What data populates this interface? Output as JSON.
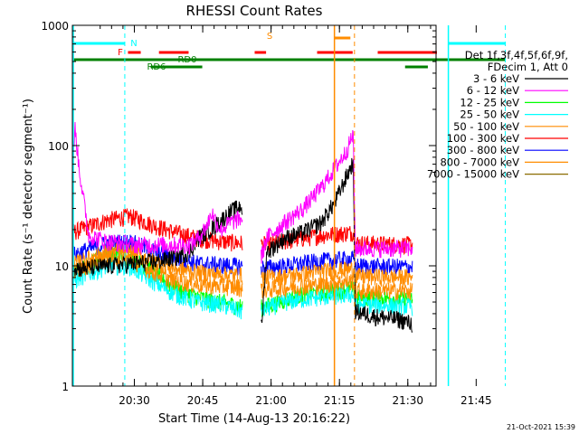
{
  "chart_data": {
    "type": "line",
    "title": "RHESSI Count Rates",
    "xlabel": "Start Time (14-Aug-13 20:16:22)",
    "ylabel": "Count Rate (s⁻¹ detector segment⁻¹)",
    "yscale": "log",
    "ylim": [
      1,
      1000
    ],
    "xlim_minutes": [
      20.4,
      100.2
    ],
    "x_unit": "minutes after 20:16:22",
    "xtick_labels": [
      "20:30",
      "20:45",
      "21:00",
      "21:15",
      "21:30",
      "21:45"
    ],
    "xtick_values": [
      13.6,
      28.6,
      43.6,
      58.6,
      73.6,
      88.6
    ],
    "ytick_labels": [
      "1",
      "10",
      "100",
      "1000"
    ],
    "ytick_values": [
      1,
      10,
      100,
      1000
    ],
    "grid": false,
    "legend_position": "right",
    "legend_header": [
      "Det 1f,3f,4f,5f,6f,9f,",
      "FDecim 1, Att 0"
    ],
    "footer": "21-Oct-2021 15:39",
    "gap_minutes": [
      57.5,
      61.9
    ],
    "series": [
      {
        "name": "3 - 6 keV",
        "color": "#000000",
        "points": [
          [
            0,
            4.2
          ],
          [
            6,
            3.2
          ],
          [
            11.5,
            2.8
          ],
          [
            12.4,
            24
          ],
          [
            17,
            11.5
          ],
          [
            22,
            9.5
          ],
          [
            28,
            10
          ],
          [
            34,
            10.5
          ],
          [
            40,
            11
          ],
          [
            46,
            13
          ],
          [
            48,
            17
          ],
          [
            52,
            22
          ],
          [
            55,
            28
          ],
          [
            57.5,
            32
          ],
          [
            61.9,
            3
          ],
          [
            63,
            13
          ],
          [
            67,
            17
          ],
          [
            71,
            19
          ],
          [
            75,
            23
          ],
          [
            78,
            34
          ],
          [
            80.5,
            55
          ],
          [
            82,
            73
          ],
          [
            82.5,
            4.2
          ],
          [
            87,
            3.8
          ],
          [
            92,
            3.6
          ],
          [
            95,
            3.3
          ]
        ]
      },
      {
        "name": "6 - 12 keV",
        "color": "#ff00ff",
        "points": [
          [
            0,
            14
          ],
          [
            11.5,
            14
          ],
          [
            12.4,
            17
          ],
          [
            17,
            17
          ],
          [
            19.5,
            20
          ],
          [
            21,
            140
          ],
          [
            22,
            60
          ],
          [
            24,
            18
          ],
          [
            28,
            16
          ],
          [
            34,
            15
          ],
          [
            40,
            15
          ],
          [
            46,
            15
          ],
          [
            48,
            17
          ],
          [
            50,
            22
          ],
          [
            51,
            28
          ],
          [
            52,
            23
          ],
          [
            53,
            20
          ],
          [
            55,
            23
          ],
          [
            57.5,
            25
          ],
          [
            61.9,
            12
          ],
          [
            63,
            17
          ],
          [
            67,
            23
          ],
          [
            71,
            30
          ],
          [
            75,
            45
          ],
          [
            78,
            65
          ],
          [
            80.5,
            90
          ],
          [
            82,
            125
          ],
          [
            82.5,
            14
          ],
          [
            95,
            14
          ]
        ]
      },
      {
        "name": "12 - 25 keV",
        "color": "#00ff00",
        "points": [
          [
            0,
            7.5
          ],
          [
            11.5,
            7.2
          ],
          [
            12.4,
            6
          ],
          [
            17,
            7
          ],
          [
            22,
            9.5
          ],
          [
            28,
            12.5
          ],
          [
            33,
            12
          ],
          [
            38,
            9
          ],
          [
            43,
            6.5
          ],
          [
            48,
            5.5
          ],
          [
            53,
            5
          ],
          [
            57.5,
            4.6
          ],
          [
            61.9,
            4.5
          ],
          [
            67,
            5.2
          ],
          [
            71,
            5.8
          ],
          [
            75,
            6
          ],
          [
            82,
            6.5
          ],
          [
            82.5,
            5.5
          ],
          [
            95,
            5.3
          ]
        ]
      },
      {
        "name": "25 - 50 keV",
        "color": "#00ffff",
        "points": [
          [
            0,
            5.5
          ],
          [
            11.5,
            5.2
          ],
          [
            12.4,
            5.2
          ],
          [
            17,
            6
          ],
          [
            22,
            8
          ],
          [
            28,
            10
          ],
          [
            33,
            10
          ],
          [
            38,
            7.5
          ],
          [
            43,
            5.8
          ],
          [
            48,
            5
          ],
          [
            53,
            4.8
          ],
          [
            57.5,
            4.2
          ],
          [
            61.9,
            4.3
          ],
          [
            67,
            5
          ],
          [
            71,
            5.3
          ],
          [
            75,
            5.5
          ],
          [
            82,
            5.8
          ],
          [
            82.5,
            4.8
          ],
          [
            95,
            4.6
          ]
        ]
      },
      {
        "name": "50 - 100 keV",
        "color": "#ff8c00",
        "points": [
          [
            0,
            6.8
          ],
          [
            11.5,
            6.7
          ],
          [
            12.4,
            6.2
          ],
          [
            17,
            7.2
          ],
          [
            22,
            9.5
          ],
          [
            28,
            12
          ],
          [
            33,
            11.5
          ],
          [
            38,
            9
          ],
          [
            43,
            7.5
          ],
          [
            48,
            7
          ],
          [
            53,
            6.8
          ],
          [
            57.5,
            6.6
          ],
          [
            61.9,
            6.3
          ],
          [
            67,
            6.6
          ],
          [
            71,
            6.8
          ],
          [
            75,
            7
          ],
          [
            82,
            7.5
          ],
          [
            82.5,
            6.2
          ],
          [
            95,
            6.2
          ]
        ]
      },
      {
        "name": "100 - 300 keV",
        "color": "#ff0000",
        "points": [
          [
            0,
            15
          ],
          [
            11.5,
            15
          ],
          [
            12.4,
            16
          ],
          [
            17,
            17
          ],
          [
            22,
            20
          ],
          [
            28,
            24
          ],
          [
            33,
            26
          ],
          [
            38,
            22
          ],
          [
            43,
            19
          ],
          [
            48,
            17
          ],
          [
            53,
            16
          ],
          [
            57.5,
            15.5
          ],
          [
            61.9,
            15
          ],
          [
            67,
            16
          ],
          [
            71,
            17
          ],
          [
            75,
            18
          ],
          [
            82,
            19
          ],
          [
            82.5,
            15.5
          ],
          [
            95,
            15
          ]
        ]
      },
      {
        "name": "300 - 800 keV",
        "color": "#0000ff",
        "points": [
          [
            0,
            10.3
          ],
          [
            11.5,
            10
          ],
          [
            12.4,
            10.5
          ],
          [
            17,
            11.2
          ],
          [
            22,
            13
          ],
          [
            28,
            15.5
          ],
          [
            33,
            16
          ],
          [
            38,
            13.5
          ],
          [
            43,
            11.5
          ],
          [
            48,
            10.5
          ],
          [
            53,
            10.2
          ],
          [
            57.5,
            10
          ],
          [
            61.9,
            9.6
          ],
          [
            67,
            10
          ],
          [
            71,
            10.5
          ],
          [
            75,
            11
          ],
          [
            82,
            11.5
          ],
          [
            82.5,
            10
          ],
          [
            95,
            9.8
          ]
        ]
      },
      {
        "name": "800 - 7000 keV",
        "color": "#ff8c00",
        "points": [
          [
            0,
            8.6
          ],
          [
            11.5,
            8.2
          ],
          [
            12.4,
            8.2
          ],
          [
            17,
            9
          ],
          [
            22,
            10.8
          ],
          [
            28,
            13
          ],
          [
            33,
            13.2
          ],
          [
            38,
            11
          ],
          [
            43,
            9.5
          ],
          [
            48,
            8.8
          ],
          [
            53,
            8.5
          ],
          [
            57.5,
            8.3
          ],
          [
            61.9,
            8
          ],
          [
            67,
            8.2
          ],
          [
            71,
            8.6
          ],
          [
            75,
            9
          ],
          [
            82,
            9.4
          ],
          [
            82.5,
            8.2
          ],
          [
            95,
            8
          ]
        ]
      },
      {
        "name": "7000 - 15000 keV",
        "color": "#8b6b00",
        "points": []
      }
    ],
    "bars": [
      {
        "label": "N",
        "color": "#00ffff",
        "segments": [
          [
            0,
            11.5
          ],
          [
            82.5,
            95
          ]
        ]
      },
      {
        "label": "F",
        "color": "#ff0000",
        "segments": [
          [
            12.2,
            15
          ],
          [
            19,
            25.5
          ],
          [
            40,
            42.5
          ],
          [
            53.7,
            61.5
          ],
          [
            67,
            80
          ]
        ]
      },
      {
        "label": "S",
        "color": "#ff8c00",
        "segments": [
          [
            57.5,
            61
          ]
        ]
      },
      {
        "label": "RD0",
        "color": "#008000",
        "segments": [
          [
            0,
            95
          ]
        ]
      },
      {
        "label": "RD6",
        "color": "#008000",
        "segments": [
          [
            17.2,
            28.5
          ],
          [
            73,
            78
          ]
        ]
      }
    ],
    "vlines": [
      {
        "minute": 0.2,
        "color": "#00ffff",
        "style": "solid"
      },
      {
        "minute": 11.5,
        "color": "#00ffff",
        "style": "dashed"
      },
      {
        "minute": 57.5,
        "color": "#ff8c00",
        "style": "solid"
      },
      {
        "minute": 61.9,
        "color": "#ff8c00",
        "style": "dashed"
      },
      {
        "minute": 82.5,
        "color": "#00ffff",
        "style": "solid"
      },
      {
        "minute": 95.0,
        "color": "#00ffff",
        "style": "dashed"
      }
    ]
  }
}
